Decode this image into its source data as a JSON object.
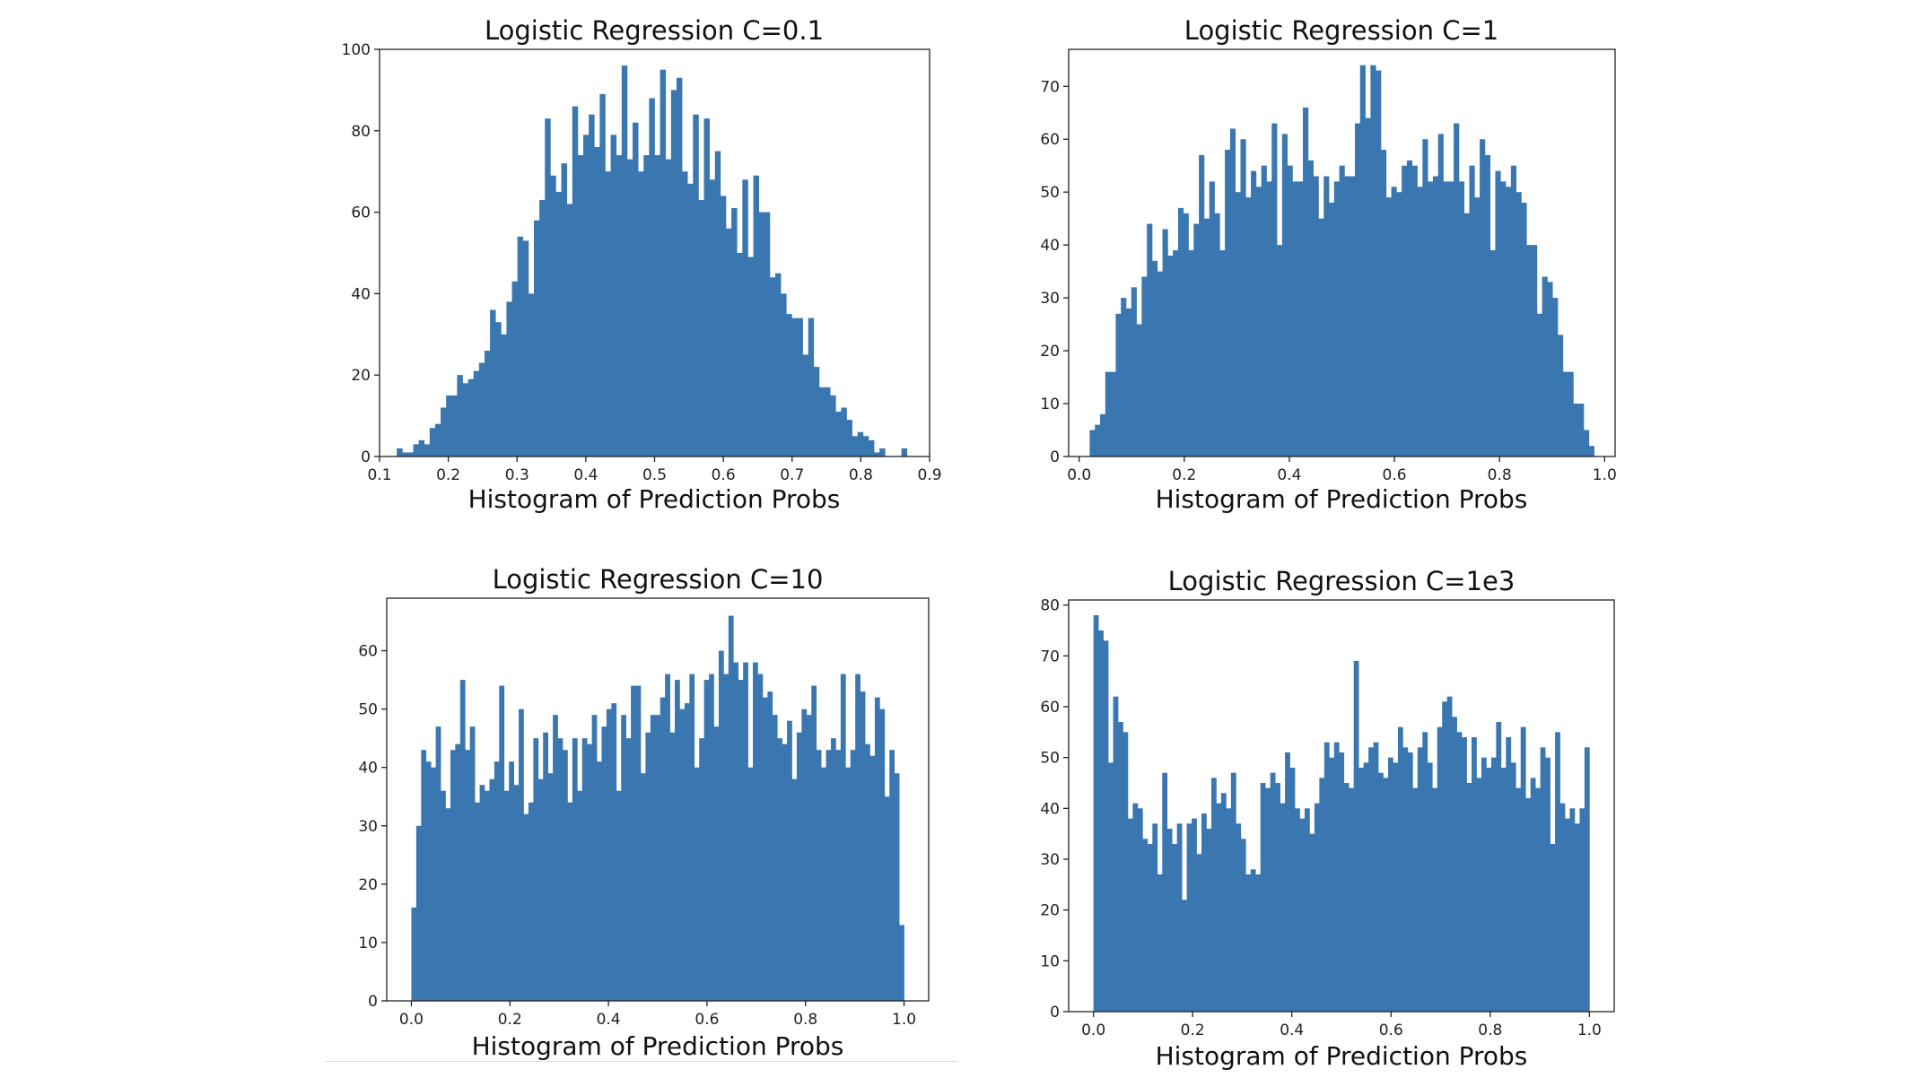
{
  "chart_data": [
    {
      "type": "bar",
      "title": "Logistic Regression C=0.1",
      "xlabel": "Histogram of Prediction Probs",
      "ylabel": "",
      "xlim": [
        0.1,
        0.9
      ],
      "ylim": [
        0,
        100
      ],
      "xticks": [
        "0.1",
        "0.2",
        "0.3",
        "0.4",
        "0.5",
        "0.6",
        "0.7",
        "0.8",
        "0.9"
      ],
      "yticks": [
        "0",
        "20",
        "40",
        "60",
        "80",
        "100"
      ],
      "bin_start": 0.125,
      "bin_end": 0.883,
      "grid": false,
      "legend": "none",
      "color": "#3a77b0",
      "values": [
        2,
        1,
        1,
        3,
        4,
        3,
        7,
        8,
        12,
        15,
        15,
        20,
        18,
        19,
        21,
        23,
        26,
        36,
        33,
        30,
        38,
        43,
        54,
        53,
        40,
        58,
        63,
        83,
        69,
        65,
        72,
        62,
        86,
        74,
        79,
        84,
        76,
        89,
        70,
        79,
        74,
        96,
        73,
        82,
        70,
        74,
        88,
        74,
        95,
        73,
        90,
        93,
        70,
        67,
        84,
        63,
        83,
        68,
        75,
        64,
        56,
        61,
        50,
        68,
        49,
        69,
        60,
        60,
        44,
        45,
        40,
        35,
        34,
        34,
        25,
        34,
        22,
        17,
        17,
        15,
        11,
        12,
        9,
        5,
        6,
        5,
        4,
        1,
        2,
        0,
        0,
        0,
        2,
        0,
        0
      ]
    },
    {
      "type": "bar",
      "title": "Logistic Regression C=1",
      "xlabel": "Histogram of Prediction Probs",
      "ylabel": "",
      "xlim": [
        -0.02,
        1.02
      ],
      "ylim": [
        0,
        77
      ],
      "xticks": [
        "0.0",
        "0.2",
        "0.4",
        "0.6",
        "0.8",
        "1.0"
      ],
      "yticks": [
        "0",
        "10",
        "20",
        "30",
        "40",
        "50",
        "60",
        "70"
      ],
      "bin_start": 0.02,
      "bin_end": 0.98,
      "grid": false,
      "legend": "none",
      "color": "#3a77b0",
      "values": [
        5,
        6,
        8,
        16,
        16,
        27,
        30,
        28,
        32,
        25,
        34,
        44,
        37,
        35,
        43,
        38,
        39,
        47,
        46,
        39,
        44,
        57,
        45,
        52,
        46,
        39,
        58,
        62,
        50,
        60,
        49,
        54,
        51,
        55,
        52,
        63,
        40,
        61,
        55,
        52,
        52,
        66,
        56,
        53,
        45,
        53,
        48,
        52,
        55,
        53,
        53,
        63,
        74,
        64,
        74,
        73,
        58,
        49,
        51,
        50,
        55,
        56,
        55,
        51,
        60,
        52,
        53,
        61,
        52,
        52,
        63,
        52,
        46,
        55,
        49,
        60,
        57,
        39,
        54,
        52,
        51,
        55,
        50,
        48,
        40,
        40,
        27,
        34,
        33,
        30,
        23,
        16,
        16,
        10,
        10,
        5,
        2
      ]
    },
    {
      "type": "bar",
      "title": "Logistic Regression C=10",
      "xlabel": "Histogram of Prediction Probs",
      "ylabel": "",
      "xlim": [
        -0.05,
        1.05
      ],
      "ylim": [
        0,
        69
      ],
      "xticks": [
        "0.0",
        "0.2",
        "0.4",
        "0.6",
        "0.8",
        "1.0"
      ],
      "yticks": [
        "0",
        "10",
        "20",
        "30",
        "40",
        "50",
        "60"
      ],
      "bin_start": 0.0,
      "bin_end": 1.0,
      "grid": false,
      "legend": "none",
      "color": "#3a77b0",
      "values": [
        16,
        30,
        43,
        41,
        40,
        47,
        36,
        33,
        43,
        44,
        55,
        43,
        47,
        34,
        37,
        36,
        38,
        41,
        54,
        36,
        41,
        37,
        50,
        32,
        34,
        45,
        38,
        46,
        39,
        49,
        45,
        43,
        34,
        45,
        36,
        45,
        44,
        49,
        41,
        47,
        50,
        51,
        36,
        49,
        45,
        54,
        54,
        39,
        46,
        49,
        49,
        52,
        56,
        46,
        55,
        50,
        51,
        56,
        40,
        45,
        55,
        56,
        47,
        60,
        56,
        66,
        58,
        55,
        58,
        40,
        58,
        56,
        52,
        53,
        49,
        45,
        44,
        48,
        38,
        46,
        50,
        49,
        54,
        43,
        40,
        43,
        45,
        43,
        56,
        40,
        43,
        56,
        53,
        44,
        42,
        52,
        50,
        35,
        43,
        39,
        13
      ]
    },
    {
      "type": "bar",
      "title": "Logistic Regression C=1e3",
      "xlabel": "Histogram of Prediction Probs",
      "ylabel": "",
      "xlim": [
        -0.05,
        1.05
      ],
      "ylim": [
        0,
        81
      ],
      "xticks": [
        "0.0",
        "0.2",
        "0.4",
        "0.6",
        "0.8",
        "1.0"
      ],
      "yticks": [
        "0",
        "10",
        "20",
        "30",
        "40",
        "50",
        "60",
        "70",
        "80"
      ],
      "bin_start": 0.0,
      "bin_end": 1.0,
      "grid": false,
      "legend": "none",
      "color": "#3a77b0",
      "values": [
        78,
        75,
        73,
        49,
        62,
        57,
        55,
        38,
        41,
        40,
        34,
        33,
        37,
        27,
        47,
        36,
        33,
        37,
        22,
        37,
        38,
        31,
        39,
        36,
        46,
        41,
        43,
        40,
        47,
        37,
        34,
        27,
        28,
        27,
        45,
        44,
        47,
        45,
        41,
        51,
        48,
        40,
        38,
        40,
        35,
        41,
        46,
        53,
        50,
        53,
        51,
        45,
        44,
        69,
        48,
        49,
        52,
        53,
        47,
        46,
        50,
        49,
        56,
        52,
        51,
        44,
        52,
        55,
        49,
        44,
        56,
        61,
        62,
        58,
        55,
        54,
        45,
        54,
        46,
        50,
        48,
        50,
        57,
        48,
        54,
        49,
        44,
        56,
        42,
        46,
        44,
        52,
        50,
        33,
        55,
        41,
        38,
        40,
        37,
        40,
        52
      ]
    }
  ]
}
